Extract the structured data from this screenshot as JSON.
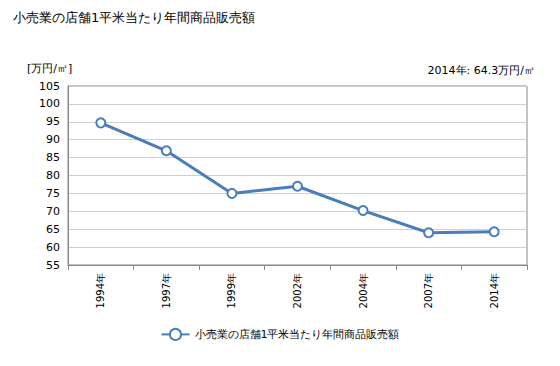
{
  "chart_data": {
    "type": "line",
    "title": "小売業の店舗1平米当たり年間商品販売額",
    "ylabel": "[万円/㎡]",
    "annotations": [
      "2014年: 64.3万円/㎡"
    ],
    "categories": [
      "1994年",
      "1997年",
      "1999年",
      "2002年",
      "2004年",
      "2007年",
      "2014年"
    ],
    "series": [
      {
        "name": "小売業の店舗1平米当たり年間商品販売額",
        "color": "#4a7ebb",
        "values": [
          94.7,
          86.9,
          75.0,
          77.0,
          70.2,
          64.0,
          64.3
        ],
        "marker": "circle"
      }
    ],
    "ylim": [
      55,
      105
    ],
    "yticks": [
      55,
      60,
      65,
      70,
      75,
      80,
      85,
      90,
      95,
      100,
      105
    ],
    "grid": true,
    "legend": "bottom"
  }
}
